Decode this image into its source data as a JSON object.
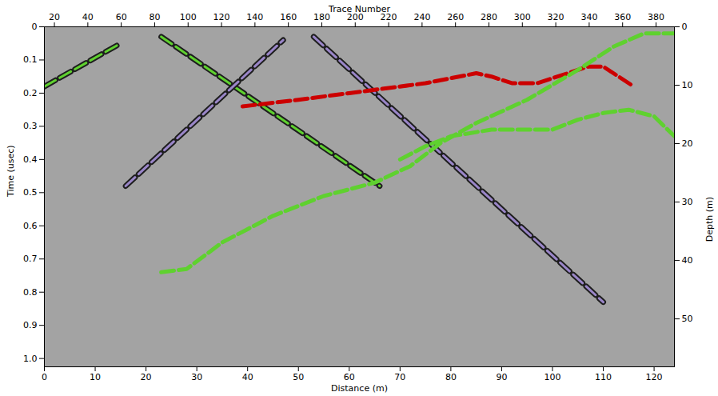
{
  "chart_data": {
    "type": "line",
    "xlabel": "Distance (m)",
    "ylabel": "Time (usec)",
    "x2label": "Trace Number",
    "y2label": "Depth (m)",
    "xlim": [
      0,
      124
    ],
    "xticks": [
      0,
      10,
      20,
      30,
      40,
      50,
      60,
      70,
      80,
      90,
      100,
      110,
      120
    ],
    "ylim": [
      0,
      1.025
    ],
    "yticks": [
      0,
      0.1,
      0.2,
      0.3,
      0.4,
      0.5,
      0.6,
      0.7,
      0.8,
      0.9,
      {
        "value": 1,
        "label": "1.0"
      }
    ],
    "x2lim": [
      14,
      391
    ],
    "x2ticks": [
      20,
      40,
      60,
      80,
      100,
      120,
      140,
      160,
      180,
      200,
      220,
      240,
      260,
      280,
      300,
      320,
      340,
      360,
      380
    ],
    "y2lim": [
      0,
      58.2
    ],
    "y2ticks": [
      0,
      10,
      20,
      30,
      40,
      50
    ],
    "series": [
      {
        "color": "#5fd12f",
        "line_style": "double-dashed",
        "x": [
          0,
          15
        ],
        "values": [
          0.18,
          0.05
        ]
      },
      {
        "color": "#5fd12f",
        "line_style": "double-dashed",
        "x": [
          23,
          66
        ],
        "values": [
          0.03,
          0.48
        ]
      },
      {
        "color": "#9a86c8",
        "line_style": "double-dashed",
        "x": [
          16,
          47
        ],
        "values": [
          0.48,
          0.04
        ]
      },
      {
        "color": "#9a86c8",
        "line_style": "double-dashed",
        "x": [
          53,
          110
        ],
        "values": [
          0.03,
          0.83
        ]
      },
      {
        "color": "#cc0000",
        "line_style": "dashed",
        "x": [
          39,
          50,
          60,
          75,
          85,
          88,
          92,
          97,
          101,
          107,
          110,
          113,
          116
        ],
        "values": [
          0.24,
          0.22,
          0.2,
          0.17,
          0.14,
          0.15,
          0.17,
          0.17,
          0.15,
          0.12,
          0.12,
          0.15,
          0.18
        ]
      },
      {
        "color": "#5fd12f",
        "line_style": "dashed",
        "x": [
          23,
          28,
          35,
          45,
          55,
          65,
          72,
          78,
          85,
          95,
          105,
          112,
          118,
          124
        ],
        "values": [
          0.74,
          0.73,
          0.65,
          0.57,
          0.51,
          0.47,
          0.42,
          0.35,
          0.29,
          0.22,
          0.13,
          0.06,
          0.02,
          0.02
        ]
      },
      {
        "color": "#5fd12f",
        "line_style": "dashed",
        "x": [
          70,
          75,
          80,
          88,
          95,
          100,
          105,
          110,
          115,
          120,
          124
        ],
        "values": [
          0.4,
          0.36,
          0.33,
          0.31,
          0.31,
          0.31,
          0.28,
          0.26,
          0.25,
          0.27,
          0.33
        ]
      }
    ]
  }
}
